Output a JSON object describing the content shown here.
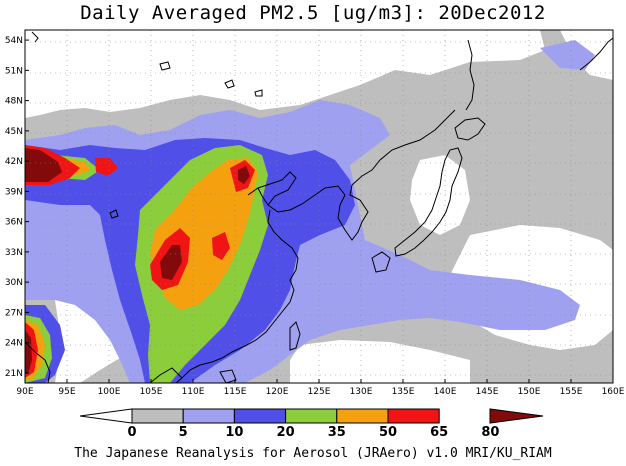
{
  "title": "Daily Averaged PM2.5 [ug/m3]: 20Dec2012",
  "credit": "The Japanese Reanalysis for Aerosol (JRAero) v1.0 MRI/KU_RIAM",
  "map": {
    "lon_range": [
      90,
      160
    ],
    "lat_range": [
      20,
      55
    ],
    "lon_ticks": [
      "90E",
      "95E",
      "100E",
      "105E",
      "110E",
      "115E",
      "120E",
      "125E",
      "130E",
      "135E",
      "140E",
      "145E",
      "150E",
      "155E",
      "160E"
    ],
    "lat_ticks": [
      "21N",
      "24N",
      "27N",
      "30N",
      "33N",
      "36N",
      "39N",
      "42N",
      "45N",
      "48N",
      "51N",
      "54N"
    ]
  },
  "colorbar": {
    "levels": [
      "0",
      "5",
      "10",
      "20",
      "35",
      "50",
      "65",
      "80"
    ],
    "colors": [
      "#ffffff",
      "#bebebe",
      "#a0a0f0",
      "#5050e8",
      "#8ccd3c",
      "#f5a00f",
      "#f01414",
      "#820a0a"
    ]
  },
  "field_levels": {
    "background": "#bebebe",
    "clean": "#ffffff",
    "lavender": "#a0a0f0",
    "blue": "#5050e8",
    "green": "#8ccd3c",
    "orange": "#f5a00f",
    "red": "#f01414",
    "maroon": "#820a0a"
  }
}
